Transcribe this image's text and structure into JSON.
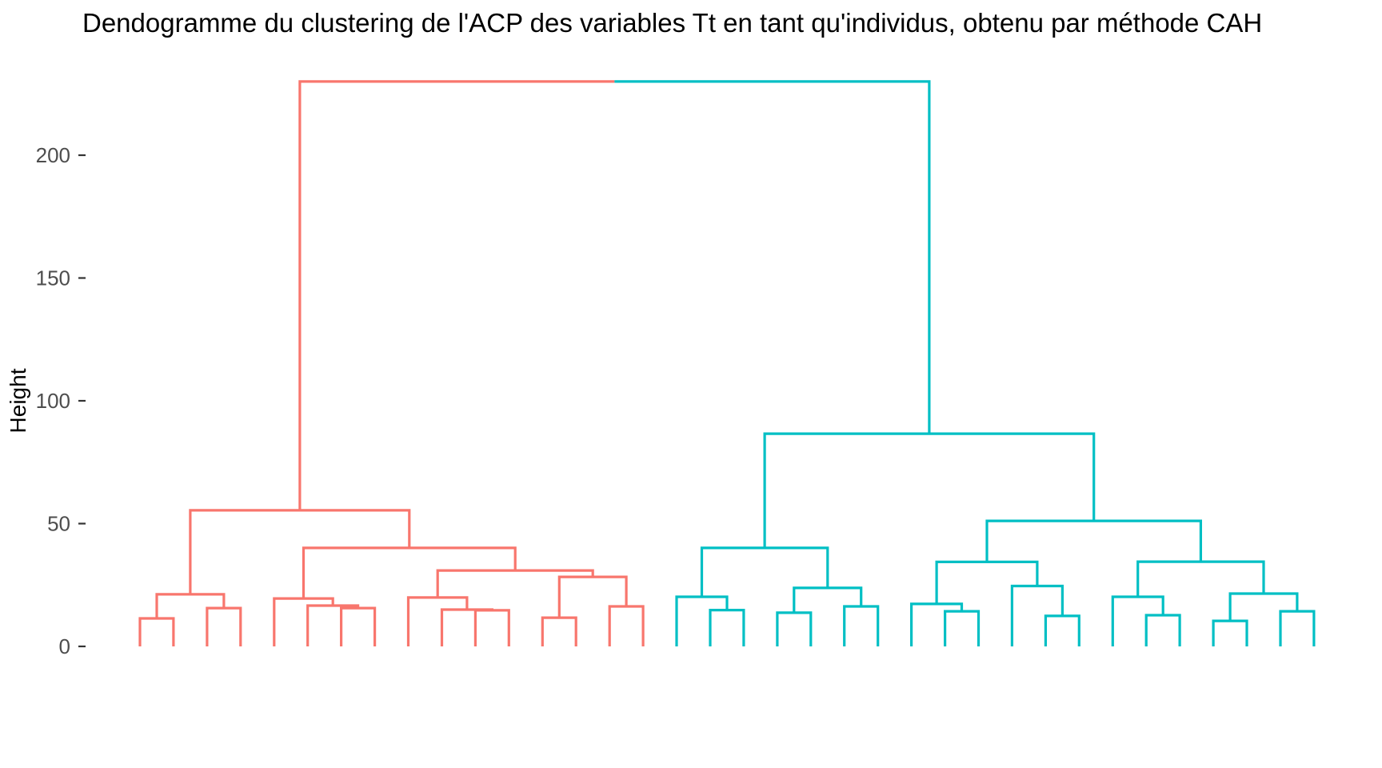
{
  "chart_data": {
    "type": "dendrogram",
    "title": "Dendogramme du clustering de l'ACP des variables Tt en tant qu'individus, obtenu par méthode CAH",
    "ylabel": "Height",
    "yticks": [
      0,
      50,
      100,
      150,
      200
    ],
    "ylim": [
      0,
      237
    ],
    "grid": false,
    "legend": "none",
    "x_axis_labels_visible": false,
    "n_leaves": 36,
    "root_height": 230,
    "colors": {
      "cluster_left": "#F8766D",
      "cluster_right": "#00BFC4",
      "axis_text": "#4d4d4d",
      "title_text": "#000000"
    },
    "clusters": [
      {
        "name": "cluster-1",
        "color": "#F8766D",
        "n_leaves": 16,
        "tree": {
          "h": 55.4,
          "c": [
            {
              "h": 21.2,
              "c": [
                {
                  "h": 11.4,
                  "c": [
                    null,
                    null
                  ]
                },
                {
                  "h": 15.6,
                  "c": [
                    null,
                    null
                  ]
                }
              ]
            },
            {
              "h": 40.1,
              "c": [
                {
                  "h": 19.5,
                  "c": [
                    null,
                    {
                      "h": 16.6,
                      "c": [
                        null,
                        {
                          "h": 15.6,
                          "c": [
                            null,
                            null
                          ]
                        }
                      ]
                    }
                  ]
                },
                {
                  "h": 30.9,
                  "c": [
                    {
                      "h": 19.9,
                      "c": [
                        null,
                        {
                          "h": 15.0,
                          "c": [
                            null,
                            {
                              "h": 14.7,
                              "c": [
                                null,
                                null
                              ]
                            }
                          ]
                        }
                      ]
                    },
                    {
                      "h": 28.3,
                      "c": [
                        {
                          "h": 11.7,
                          "c": [
                            null,
                            null
                          ]
                        },
                        {
                          "h": 16.3,
                          "c": [
                            null,
                            null
                          ]
                        }
                      ]
                    }
                  ]
                }
              ]
            }
          ]
        }
      },
      {
        "name": "cluster-2",
        "color": "#00BFC4",
        "n_leaves": 20,
        "tree": {
          "h": 86.6,
          "c": [
            {
              "h": 40.1,
              "c": [
                {
                  "h": 20.2,
                  "c": [
                    null,
                    {
                      "h": 14.8,
                      "c": [
                        null,
                        null
                      ]
                    }
                  ]
                },
                {
                  "h": 23.8,
                  "c": [
                    {
                      "h": 13.7,
                      "c": [
                        null,
                        null
                      ]
                    },
                    {
                      "h": 16.3,
                      "c": [
                        null,
                        null
                      ]
                    }
                  ]
                }
              ]
            },
            {
              "h": 51.1,
              "c": [
                {
                  "h": 34.4,
                  "c": [
                    {
                      "h": 17.3,
                      "c": [
                        null,
                        {
                          "h": 14.3,
                          "c": [
                            null,
                            null
                          ]
                        }
                      ]
                    },
                    {
                      "h": 24.6,
                      "c": [
                        null,
                        {
                          "h": 12.4,
                          "c": [
                            null,
                            null
                          ]
                        }
                      ]
                    }
                  ]
                },
                {
                  "h": 34.5,
                  "c": [
                    {
                      "h": 20.2,
                      "c": [
                        null,
                        {
                          "h": 12.7,
                          "c": [
                            null,
                            null
                          ]
                        }
                      ]
                    },
                    {
                      "h": 21.5,
                      "c": [
                        {
                          "h": 10.4,
                          "c": [
                            null,
                            null
                          ]
                        },
                        {
                          "h": 14.3,
                          "c": [
                            null,
                            null
                          ]
                        }
                      ]
                    }
                  ]
                }
              ]
            }
          ]
        }
      }
    ]
  }
}
